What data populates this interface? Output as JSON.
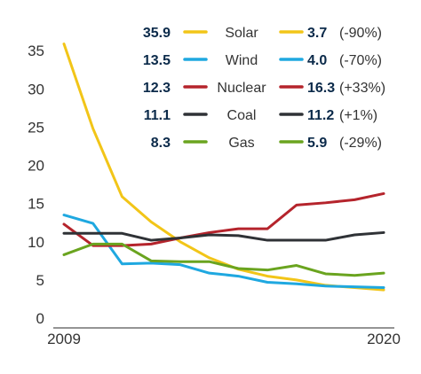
{
  "chart_data": {
    "type": "line",
    "title": "",
    "xlabel": "",
    "ylabel": "",
    "x": [
      2009,
      2010,
      2011,
      2012,
      2013,
      2014,
      2015,
      2016,
      2017,
      2018,
      2019,
      2020
    ],
    "x_tick_labels": [
      "2009",
      "2020"
    ],
    "y_ticks": [
      0,
      5,
      10,
      15,
      20,
      25,
      30,
      35
    ],
    "ylim": [
      0,
      37
    ],
    "grid": false,
    "legend_placement": "top-right",
    "series": [
      {
        "name": "Solar",
        "color": "#f2c518",
        "start_label": "35.9",
        "end_label": "3.7",
        "change_label": "(-90%)",
        "values": [
          35.9,
          24.8,
          15.9,
          12.6,
          10.0,
          7.9,
          6.4,
          5.5,
          5.0,
          4.3,
          4.0,
          3.7
        ]
      },
      {
        "name": "Wind",
        "color": "#1fa8e0",
        "start_label": "13.5",
        "end_label": "4.0",
        "change_label": "(-70%)",
        "values": [
          13.5,
          12.4,
          7.1,
          7.2,
          7.0,
          5.9,
          5.5,
          4.7,
          4.5,
          4.2,
          4.1,
          4.0
        ]
      },
      {
        "name": "Nuclear",
        "color": "#b5242c",
        "start_label": "12.3",
        "end_label": "16.3",
        "change_label": "(+33%)",
        "values": [
          12.3,
          9.5,
          9.5,
          9.7,
          10.5,
          11.2,
          11.7,
          11.7,
          14.8,
          15.1,
          15.5,
          16.3
        ]
      },
      {
        "name": "Coal",
        "color": "#2f3236",
        "start_label": "11.1",
        "end_label": "11.2",
        "change_label": "(+1%)",
        "values": [
          11.1,
          11.1,
          11.1,
          10.2,
          10.5,
          10.9,
          10.8,
          10.2,
          10.2,
          10.2,
          10.9,
          11.2
        ]
      },
      {
        "name": "Gas",
        "color": "#6aa41f",
        "start_label": "8.3",
        "end_label": "5.9",
        "change_label": "(-29%)",
        "values": [
          8.3,
          9.7,
          9.7,
          7.5,
          7.4,
          7.4,
          6.5,
          6.3,
          6.9,
          5.8,
          5.6,
          5.9
        ]
      }
    ]
  }
}
